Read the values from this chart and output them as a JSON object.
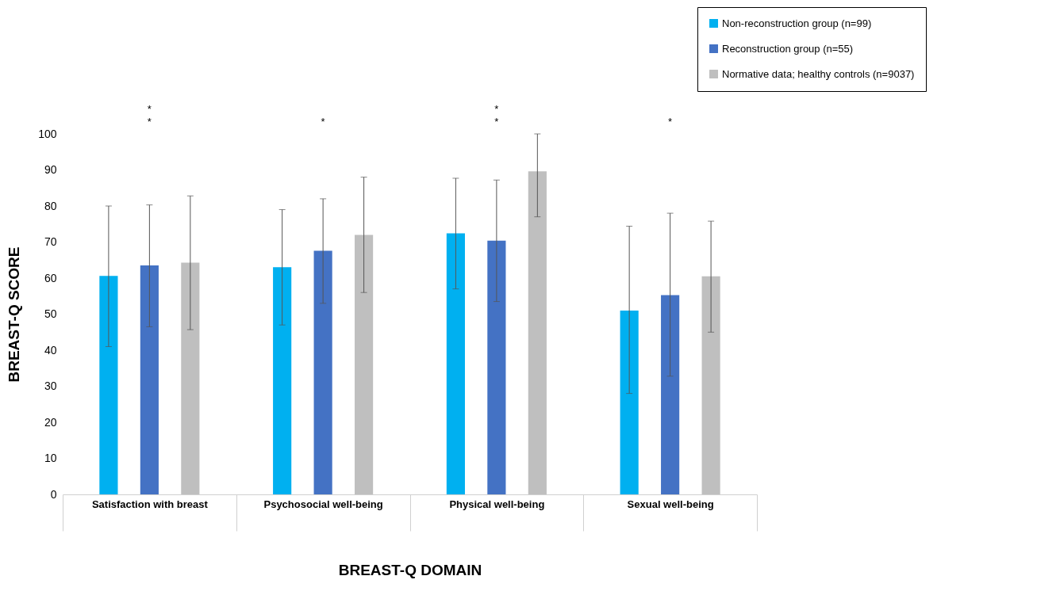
{
  "chart_data": {
    "type": "bar",
    "xlabel": "BREAST-Q DOMAIN",
    "ylabel": "BREAST-Q SCORE",
    "categories": [
      "Satisfaction with breast",
      "Psychosocial well-being",
      "Physical well-being",
      "Sexual well-being"
    ],
    "series": [
      {
        "name": "Non-reconstruction group (n=99)",
        "color": "#00b0f0",
        "values": [
          60.6,
          63,
          72.4,
          51
        ],
        "errors": [
          [
            41,
            80
          ],
          [
            47,
            79
          ],
          [
            57,
            87.7
          ],
          [
            28,
            74.4
          ]
        ]
      },
      {
        "name": "Reconstruction group (n=55)",
        "color": "#4472c4",
        "values": [
          63.5,
          67.6,
          70.4,
          55.3
        ],
        "errors": [
          [
            46.5,
            80.3
          ],
          [
            53,
            82
          ],
          [
            53.5,
            87.2
          ],
          [
            32.8,
            78
          ]
        ]
      },
      {
        "name": "Normative data; healthy controls (n=9037)",
        "color": "#bfbfbf",
        "values": [
          64.3,
          72,
          89.6,
          60.5
        ],
        "errors": [
          [
            45.7,
            82.8
          ],
          [
            56,
            88
          ],
          [
            77,
            100
          ],
          [
            45,
            75.8
          ]
        ]
      }
    ],
    "ylim": [
      0,
      100
    ],
    "yticks": [
      0,
      10,
      20,
      30,
      40,
      50,
      60,
      70,
      80,
      90,
      100
    ],
    "grid": false,
    "legend": "top right",
    "annotations": [
      "*",
      "*",
      "*",
      "*",
      "*",
      "*"
    ]
  }
}
